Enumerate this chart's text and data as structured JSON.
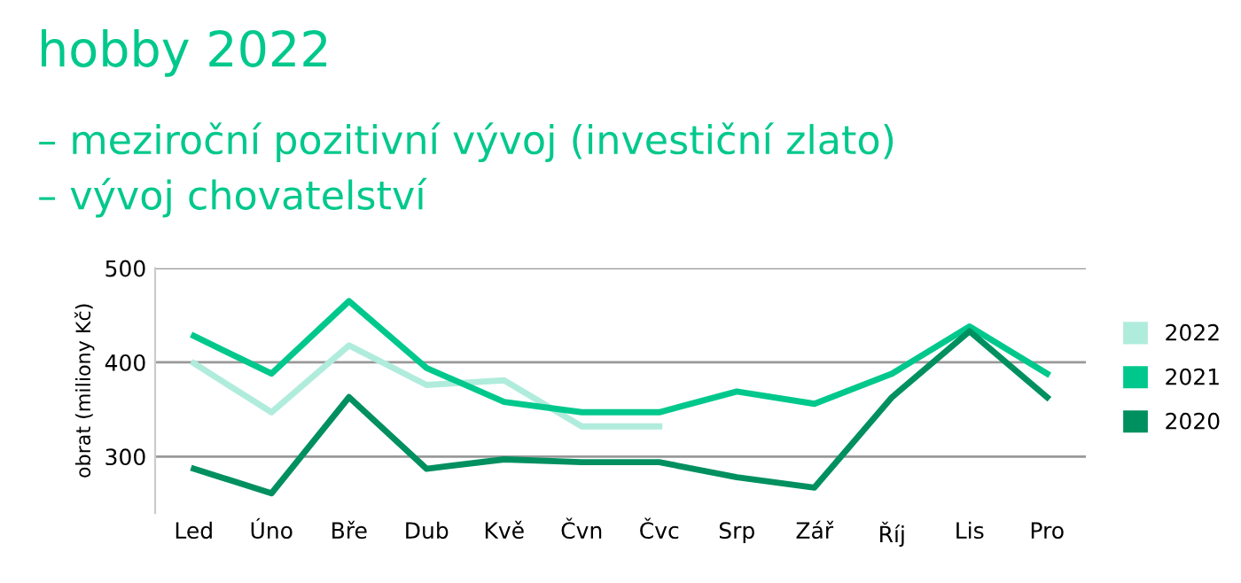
{
  "chart_data": {
    "type": "line",
    "title": "hobby 2022",
    "subtitle": "– meziroční pozitivní vývoj (investiční zlato)\n– vývoj chovatelství",
    "ylabel": "obrat (miliony Kč)",
    "categories": [
      "Led",
      "Úno",
      "Bře",
      "Dub",
      "Kvě",
      "Čvn",
      "Čvc",
      "Srp",
      "Zář",
      "Říj",
      "Lis",
      "Pro"
    ],
    "series": [
      {
        "name": "2022",
        "color": "#b0ecdc",
        "values": [
          399,
          347,
          418,
          376,
          381,
          332,
          332,
          null,
          null,
          null,
          null,
          null
        ]
      },
      {
        "name": "2021",
        "color": "#00c88c",
        "values": [
          428,
          388,
          465,
          394,
          358,
          347,
          347,
          369,
          356,
          388,
          438,
          388
        ]
      },
      {
        "name": "2020",
        "color": "#00905f",
        "values": [
          287,
          261,
          363,
          287,
          297,
          294,
          294,
          278,
          267,
          363,
          433,
          363
        ]
      }
    ],
    "ylim": [
      240,
      500
    ],
    "yticks": [
      300,
      400,
      500
    ],
    "grid": "y",
    "legend": "right",
    "marker": "none"
  }
}
